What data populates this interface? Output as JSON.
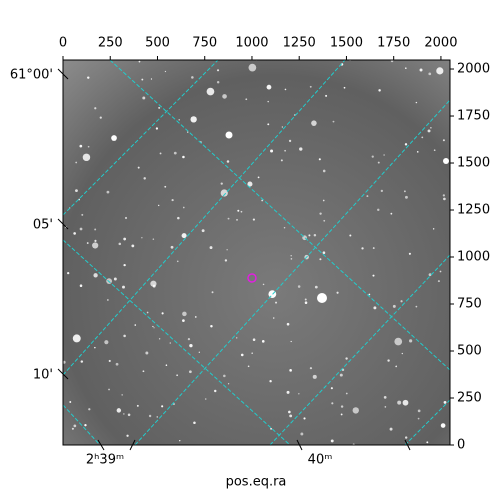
{
  "chart_data": {
    "type": "image",
    "xlabel": "pos.eq.ra",
    "xlim": [
      0,
      2048
    ],
    "xticks": [
      0,
      250,
      500,
      750,
      1000,
      1250,
      1500,
      1750,
      2000
    ],
    "ylim": [
      0,
      2048
    ],
    "yticks": [
      0,
      250,
      500,
      750,
      1000,
      1250,
      1500,
      1750,
      2000
    ],
    "dec_labels": [
      "61°00'",
      "05'",
      "10'"
    ],
    "ra_labels": [
      "2ʰ39ᵐ",
      "40ᵐ"
    ],
    "grid_color": "#22cccc"
  }
}
